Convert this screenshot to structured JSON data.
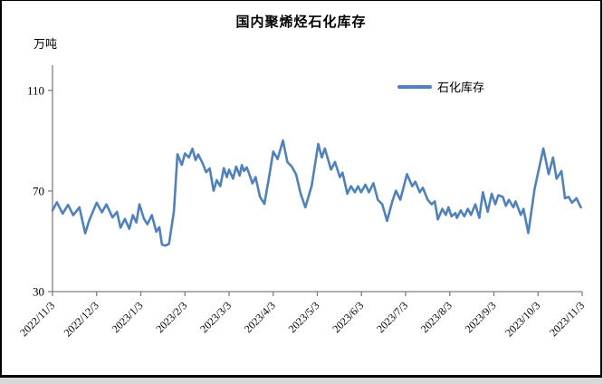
{
  "window": {
    "background": "#ffffff",
    "outer_strip_color": "#d8d8d8",
    "border_color": "#000000"
  },
  "chart": {
    "title": "国内聚烯烃石化库存",
    "y_axis_unit": "万吨",
    "legend": {
      "label": "石化库存"
    }
  },
  "chart_data": {
    "type": "line",
    "title": "国内聚烯烃石化库存",
    "ylabel": "万吨",
    "xlabel": "",
    "x_unit": "months_after_first_tick",
    "x_tick_labels": [
      "2022/11/3",
      "2022/12/3",
      "2023/1/3",
      "2023/2/3",
      "2023/3/3",
      "2023/4/3",
      "2023/5/3",
      "2023/6/3",
      "2023/7/3",
      "2023/8/3",
      "2023/9/3",
      "2023/10/3",
      "2023/11/3"
    ],
    "xlim_months": [
      0,
      12
    ],
    "ylim": [
      30,
      120
    ],
    "yticks": [
      30,
      70,
      110
    ],
    "grid": false,
    "legend_position": "inside-top-right",
    "axis_color": "#7f7f7f",
    "text_color": "#000000",
    "series": [
      {
        "name": "石化库存",
        "color": "#4F81BD",
        "points": [
          [
            0,
            62.3
          ],
          [
            0.1,
            65.5
          ],
          [
            0.23,
            61
          ],
          [
            0.35,
            64.5
          ],
          [
            0.47,
            60.4
          ],
          [
            0.61,
            63.5
          ],
          [
            0.74,
            53.2
          ],
          [
            0.83,
            58.3
          ],
          [
            1,
            65.3
          ],
          [
            1.12,
            61.5
          ],
          [
            1.22,
            64.7
          ],
          [
            1.36,
            59.5
          ],
          [
            1.46,
            61.7
          ],
          [
            1.54,
            55.4
          ],
          [
            1.64,
            58.9
          ],
          [
            1.74,
            55
          ],
          [
            1.82,
            60.4
          ],
          [
            1.9,
            57.5
          ],
          [
            1.97,
            64.7
          ],
          [
            2.07,
            59
          ],
          [
            2.15,
            56.8
          ],
          [
            2.25,
            60.4
          ],
          [
            2.35,
            53.8
          ],
          [
            2.42,
            55.6
          ],
          [
            2.48,
            48.7
          ],
          [
            2.56,
            48.3
          ],
          [
            2.64,
            49
          ],
          [
            2.75,
            62
          ],
          [
            2.83,
            84.6
          ],
          [
            2.93,
            80.4
          ],
          [
            3,
            84.9
          ],
          [
            3.09,
            83.3
          ],
          [
            3.17,
            86.8
          ],
          [
            3.24,
            82.3
          ],
          [
            3.3,
            84.5
          ],
          [
            3.4,
            81
          ],
          [
            3.48,
            77.5
          ],
          [
            3.56,
            79
          ],
          [
            3.65,
            70.1
          ],
          [
            3.72,
            74.3
          ],
          [
            3.8,
            71.9
          ],
          [
            3.88,
            79.1
          ],
          [
            3.95,
            75.5
          ],
          [
            4,
            78.5
          ],
          [
            4.09,
            74.9
          ],
          [
            4.16,
            79.7
          ],
          [
            4.24,
            76.1
          ],
          [
            4.29,
            80.3
          ],
          [
            4.34,
            77.9
          ],
          [
            4.4,
            79.4
          ],
          [
            4.46,
            76.7
          ],
          [
            4.53,
            73
          ],
          [
            4.6,
            75.5
          ],
          [
            4.7,
            67.7
          ],
          [
            4.8,
            64.9
          ],
          [
            4.9,
            75
          ],
          [
            5,
            85.7
          ],
          [
            5.1,
            82.7
          ],
          [
            5.22,
            90.1
          ],
          [
            5.32,
            81.5
          ],
          [
            5.42,
            79.7
          ],
          [
            5.52,
            76.5
          ],
          [
            5.62,
            69
          ],
          [
            5.73,
            63.5
          ],
          [
            5.87,
            72
          ],
          [
            6.02,
            88.7
          ],
          [
            6.1,
            83.3
          ],
          [
            6.17,
            86.9
          ],
          [
            6.22,
            83.9
          ],
          [
            6.31,
            78.5
          ],
          [
            6.4,
            81.5
          ],
          [
            6.51,
            75.5
          ],
          [
            6.57,
            77.3
          ],
          [
            6.68,
            68.9
          ],
          [
            6.76,
            71.9
          ],
          [
            6.85,
            69.5
          ],
          [
            6.92,
            71.9
          ],
          [
            6.99,
            69.5
          ],
          [
            7.09,
            72.5
          ],
          [
            7.17,
            69.5
          ],
          [
            7.27,
            73.1
          ],
          [
            7.37,
            66.5
          ],
          [
            7.47,
            64.7
          ],
          [
            7.58,
            58.1
          ],
          [
            7.7,
            66
          ],
          [
            7.78,
            70.1
          ],
          [
            7.88,
            66.5
          ],
          [
            8.03,
            76.7
          ],
          [
            8.15,
            71.9
          ],
          [
            8.22,
            73.7
          ],
          [
            8.32,
            69.5
          ],
          [
            8.39,
            71.3
          ],
          [
            8.5,
            66.5
          ],
          [
            8.59,
            64.7
          ],
          [
            8.66,
            65.9
          ],
          [
            8.73,
            58.7
          ],
          [
            8.83,
            62.9
          ],
          [
            8.91,
            60.5
          ],
          [
            8.97,
            63.5
          ],
          [
            9.04,
            59.9
          ],
          [
            9.13,
            61.2
          ],
          [
            9.16,
            59.3
          ],
          [
            9.25,
            62.3
          ],
          [
            9.33,
            59.9
          ],
          [
            9.41,
            62.9
          ],
          [
            9.48,
            60.5
          ],
          [
            9.58,
            64.7
          ],
          [
            9.67,
            59.3
          ],
          [
            9.75,
            69.5
          ],
          [
            9.86,
            61.7
          ],
          [
            9.95,
            68.9
          ],
          [
            10.03,
            64.7
          ],
          [
            10.1,
            68.3
          ],
          [
            10.2,
            67.7
          ],
          [
            10.27,
            64.1
          ],
          [
            10.34,
            66.5
          ],
          [
            10.44,
            63.5
          ],
          [
            10.49,
            65.9
          ],
          [
            10.61,
            60.5
          ],
          [
            10.67,
            62.9
          ],
          [
            10.78,
            53.3
          ],
          [
            10.92,
            70.7
          ],
          [
            11.12,
            86.9
          ],
          [
            11.24,
            76.7
          ],
          [
            11.34,
            83.3
          ],
          [
            11.42,
            74.9
          ],
          [
            11.53,
            77.9
          ],
          [
            11.61,
            67.1
          ],
          [
            11.69,
            67.7
          ],
          [
            11.77,
            65.3
          ],
          [
            11.87,
            67.1
          ],
          [
            11.97,
            63.5
          ]
        ]
      }
    ]
  }
}
